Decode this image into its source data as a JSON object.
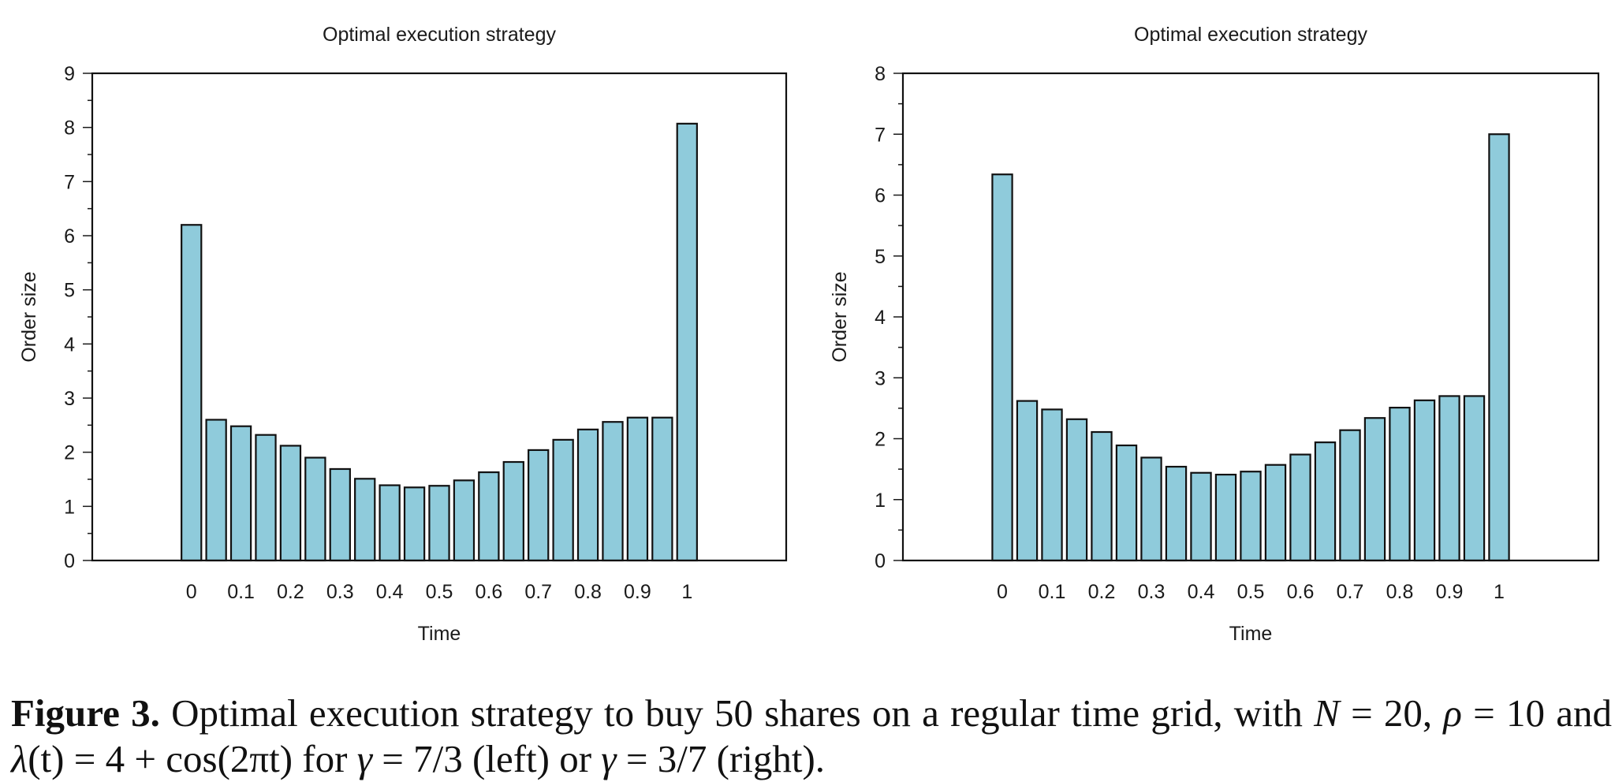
{
  "chart_data": [
    {
      "type": "bar",
      "title": "Optimal execution strategy",
      "xlabel": "Time",
      "ylabel": "Order size",
      "ylim": [
        0,
        9
      ],
      "xlim": [
        -0.2,
        1.2
      ],
      "yticks": [
        0,
        1,
        2,
        3,
        4,
        5,
        6,
        7,
        8,
        9
      ],
      "xticks": [
        0,
        0.1,
        0.2,
        0.3,
        0.4,
        0.5,
        0.6,
        0.7,
        0.8,
        0.9,
        1
      ],
      "bar_width": 0.04,
      "bar_color": "#8fcbdb",
      "x": [
        0,
        0.05,
        0.1,
        0.15,
        0.2,
        0.25,
        0.3,
        0.35,
        0.4,
        0.45,
        0.5,
        0.55,
        0.6,
        0.65,
        0.7,
        0.75,
        0.8,
        0.85,
        0.9,
        0.95,
        1
      ],
      "values": [
        6.2,
        2.6,
        2.48,
        2.32,
        2.12,
        1.9,
        1.69,
        1.51,
        1.39,
        1.35,
        1.38,
        1.48,
        1.63,
        1.82,
        2.04,
        2.23,
        2.42,
        2.56,
        2.64,
        2.64,
        8.07
      ]
    },
    {
      "type": "bar",
      "title": "Optimal execution strategy",
      "xlabel": "Time",
      "ylabel": "Order size",
      "ylim": [
        0,
        8
      ],
      "xlim": [
        -0.2,
        1.2
      ],
      "yticks": [
        0,
        1,
        2,
        3,
        4,
        5,
        6,
        7,
        8
      ],
      "xticks": [
        0,
        0.1,
        0.2,
        0.3,
        0.4,
        0.5,
        0.6,
        0.7,
        0.8,
        0.9,
        1
      ],
      "bar_width": 0.04,
      "bar_color": "#8fcbdb",
      "x": [
        0,
        0.05,
        0.1,
        0.15,
        0.2,
        0.25,
        0.3,
        0.35,
        0.4,
        0.45,
        0.5,
        0.55,
        0.6,
        0.65,
        0.7,
        0.75,
        0.8,
        0.85,
        0.9,
        0.95,
        1
      ],
      "values": [
        6.34,
        2.62,
        2.48,
        2.32,
        2.11,
        1.89,
        1.69,
        1.54,
        1.44,
        1.41,
        1.46,
        1.57,
        1.74,
        1.94,
        2.14,
        2.34,
        2.51,
        2.63,
        2.7,
        2.7,
        7.0
      ]
    }
  ],
  "caption": {
    "label": "Figure 3.",
    "line1": " Optimal execution strategy to buy 50 shares on a regular time grid, with ",
    "var_n": "N",
    "eq_n": " = 20,",
    "var_rho": "ρ",
    "eq_rho": " = 10 and ",
    "var_lambda": "λ",
    "lambda_expr": "(t) = 4 + cos(2πt) for ",
    "var_gamma1": "γ",
    "gamma1_expr": " = 7/3 (left) or ",
    "var_gamma2": "γ",
    "gamma2_expr": " = 3/7 (right)."
  }
}
